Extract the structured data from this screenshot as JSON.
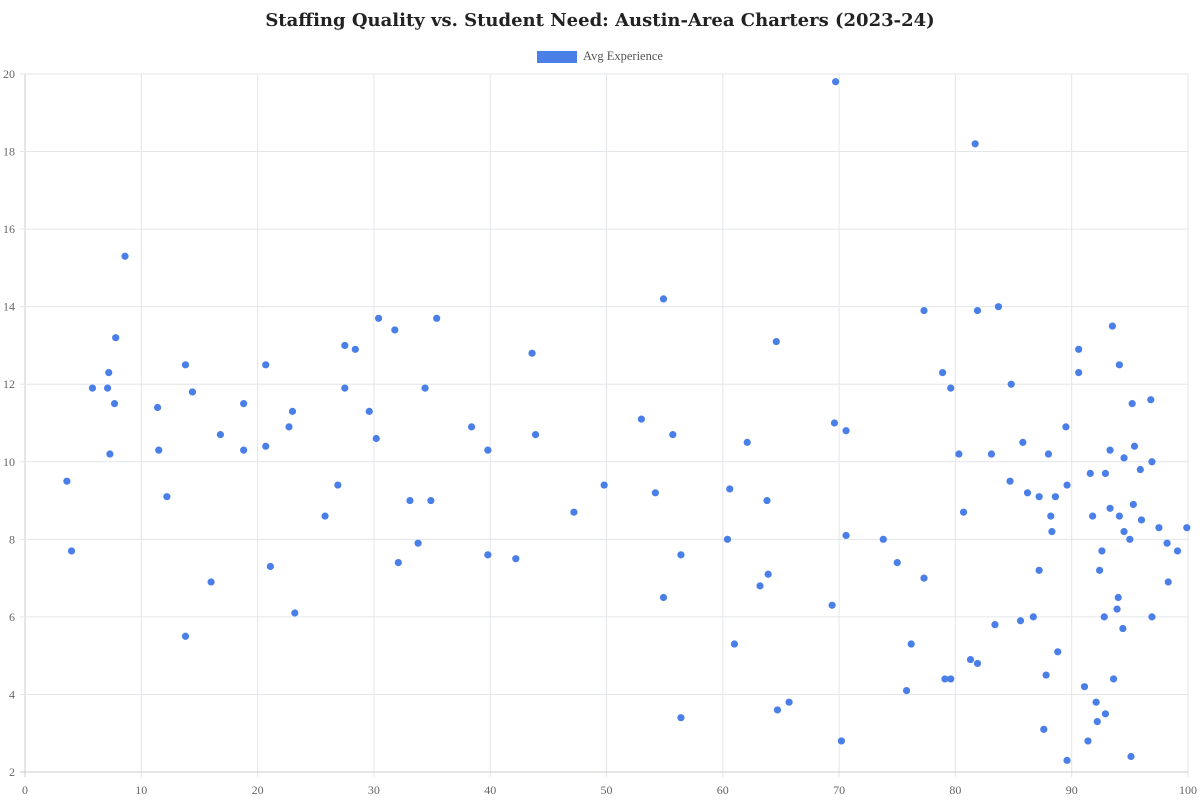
{
  "chart_data": {
    "type": "scatter",
    "title": "Staffing Quality vs. Student Need: Austin-Area Charters (2023-24)",
    "xlabel": "",
    "ylabel": "",
    "xlim": [
      0,
      100
    ],
    "ylim": [
      2,
      20
    ],
    "x_ticks": [
      "0",
      "10",
      "20",
      "30",
      "40",
      "50",
      "60",
      "70",
      "80",
      "90",
      "100"
    ],
    "y_ticks": [
      "2",
      "4",
      "6",
      "8",
      "10",
      "12",
      "14",
      "16",
      "18",
      "20"
    ],
    "grid": true,
    "legend_position": "top",
    "series": [
      {
        "name": "Avg Experience",
        "color": "#4a7fe8",
        "points": [
          [
            3.6,
            9.5
          ],
          [
            4.0,
            7.7
          ],
          [
            5.8,
            11.9
          ],
          [
            7.1,
            11.9
          ],
          [
            7.2,
            12.3
          ],
          [
            7.3,
            10.2
          ],
          [
            7.7,
            11.5
          ],
          [
            7.8,
            13.2
          ],
          [
            8.6,
            15.3
          ],
          [
            11.4,
            11.4
          ],
          [
            11.5,
            10.3
          ],
          [
            12.2,
            9.1
          ],
          [
            13.8,
            12.5
          ],
          [
            13.8,
            5.5
          ],
          [
            14.4,
            11.8
          ],
          [
            16.0,
            6.9
          ],
          [
            16.8,
            10.7
          ],
          [
            18.8,
            11.5
          ],
          [
            18.8,
            10.3
          ],
          [
            20.7,
            12.5
          ],
          [
            20.7,
            10.4
          ],
          [
            21.1,
            7.3
          ],
          [
            22.7,
            10.9
          ],
          [
            23.0,
            11.3
          ],
          [
            23.2,
            6.1
          ],
          [
            25.8,
            8.6
          ],
          [
            26.9,
            9.4
          ],
          [
            27.5,
            13.0
          ],
          [
            27.5,
            11.9
          ],
          [
            28.4,
            12.9
          ],
          [
            29.6,
            11.3
          ],
          [
            30.2,
            10.6
          ],
          [
            30.4,
            13.7
          ],
          [
            31.8,
            13.4
          ],
          [
            32.1,
            7.4
          ],
          [
            33.1,
            9.0
          ],
          [
            33.8,
            7.9
          ],
          [
            34.4,
            11.9
          ],
          [
            34.9,
            9.0
          ],
          [
            35.4,
            13.7
          ],
          [
            38.4,
            10.9
          ],
          [
            39.8,
            10.3
          ],
          [
            39.8,
            7.6
          ],
          [
            42.2,
            7.5
          ],
          [
            43.6,
            12.8
          ],
          [
            43.9,
            10.7
          ],
          [
            47.2,
            8.7
          ],
          [
            49.8,
            9.4
          ],
          [
            53.0,
            11.1
          ],
          [
            54.2,
            9.2
          ],
          [
            54.9,
            14.2
          ],
          [
            54.9,
            6.5
          ],
          [
            55.7,
            10.7
          ],
          [
            56.4,
            7.6
          ],
          [
            56.4,
            3.4
          ],
          [
            60.4,
            8.0
          ],
          [
            60.6,
            9.3
          ],
          [
            61.0,
            5.3
          ],
          [
            62.1,
            10.5
          ],
          [
            63.2,
            6.8
          ],
          [
            63.8,
            9.0
          ],
          [
            63.9,
            7.1
          ],
          [
            64.6,
            13.1
          ],
          [
            64.7,
            3.6
          ],
          [
            65.7,
            3.8
          ],
          [
            69.4,
            6.3
          ],
          [
            69.6,
            11.0
          ],
          [
            69.7,
            19.8
          ],
          [
            70.2,
            2.8
          ],
          [
            70.6,
            8.1
          ],
          [
            70.6,
            10.8
          ],
          [
            73.8,
            8.0
          ],
          [
            75.0,
            7.4
          ],
          [
            75.8,
            4.1
          ],
          [
            76.2,
            5.3
          ],
          [
            77.3,
            13.9
          ],
          [
            77.3,
            7.0
          ],
          [
            78.9,
            12.3
          ],
          [
            79.1,
            4.4
          ],
          [
            79.6,
            4.4
          ],
          [
            79.6,
            11.9
          ],
          [
            80.3,
            10.2
          ],
          [
            80.7,
            8.7
          ],
          [
            81.3,
            4.9
          ],
          [
            81.7,
            18.2
          ],
          [
            81.9,
            4.8
          ],
          [
            81.9,
            13.9
          ],
          [
            83.1,
            10.2
          ],
          [
            83.4,
            5.8
          ],
          [
            83.7,
            14.0
          ],
          [
            84.7,
            9.5
          ],
          [
            84.8,
            12.0
          ],
          [
            85.6,
            5.9
          ],
          [
            85.8,
            10.5
          ],
          [
            86.2,
            9.2
          ],
          [
            86.7,
            6.0
          ],
          [
            87.2,
            9.1
          ],
          [
            87.2,
            7.2
          ],
          [
            87.6,
            3.1
          ],
          [
            87.8,
            4.5
          ],
          [
            88.0,
            10.2
          ],
          [
            88.2,
            8.6
          ],
          [
            88.3,
            8.2
          ],
          [
            88.6,
            9.1
          ],
          [
            88.8,
            5.1
          ],
          [
            89.5,
            10.9
          ],
          [
            89.6,
            9.4
          ],
          [
            89.6,
            2.3
          ],
          [
            90.6,
            12.9
          ],
          [
            90.6,
            12.3
          ],
          [
            91.1,
            4.2
          ],
          [
            91.4,
            2.8
          ],
          [
            91.6,
            9.7
          ],
          [
            91.8,
            8.6
          ],
          [
            92.1,
            3.8
          ],
          [
            92.2,
            3.3
          ],
          [
            92.4,
            7.2
          ],
          [
            92.6,
            7.7
          ],
          [
            92.8,
            6.0
          ],
          [
            92.9,
            3.5
          ],
          [
            92.9,
            9.7
          ],
          [
            93.3,
            10.3
          ],
          [
            93.3,
            8.8
          ],
          [
            93.5,
            13.5
          ],
          [
            93.6,
            4.4
          ],
          [
            93.9,
            6.2
          ],
          [
            94.0,
            6.5
          ],
          [
            94.1,
            12.5
          ],
          [
            94.1,
            8.6
          ],
          [
            94.4,
            5.7
          ],
          [
            94.5,
            10.1
          ],
          [
            94.5,
            8.2
          ],
          [
            95.0,
            8.0
          ],
          [
            95.1,
            2.4
          ],
          [
            95.2,
            11.5
          ],
          [
            95.3,
            8.9
          ],
          [
            95.4,
            10.4
          ],
          [
            95.9,
            9.8
          ],
          [
            96.0,
            8.5
          ],
          [
            96.8,
            11.6
          ],
          [
            96.9,
            6.0
          ],
          [
            96.9,
            10.0
          ],
          [
            97.5,
            8.3
          ],
          [
            98.2,
            7.9
          ],
          [
            98.3,
            6.9
          ],
          [
            99.1,
            7.7
          ],
          [
            99.9,
            8.3
          ]
        ]
      }
    ]
  },
  "legend": {
    "label": "Avg Experience",
    "color": "#4a7fe8"
  }
}
